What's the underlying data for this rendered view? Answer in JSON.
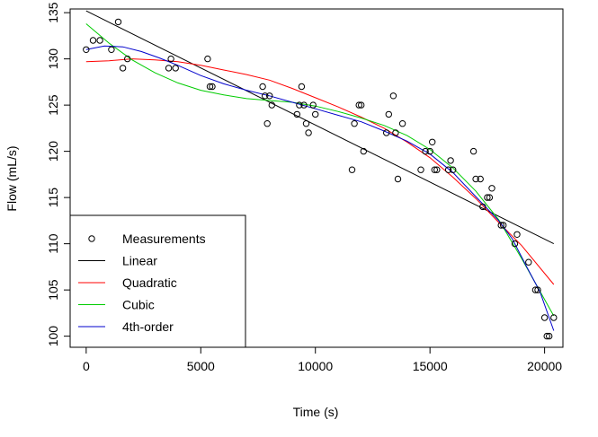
{
  "chart_data": {
    "type": "scatter",
    "title": "",
    "xlabel": "Time (s)",
    "ylabel": "Flow (mL/s)",
    "xlim": [
      -700,
      20800
    ],
    "ylim": [
      98.8,
      135.4
    ],
    "xticks": [
      0,
      5000,
      10000,
      15000,
      20000
    ],
    "yticks": [
      100,
      105,
      110,
      115,
      120,
      125,
      130,
      135
    ],
    "legend_position": "bottom-left",
    "grid": false,
    "points": [
      [
        0,
        131
      ],
      [
        300,
        132
      ],
      [
        600,
        132
      ],
      [
        1100,
        131
      ],
      [
        1400,
        134
      ],
      [
        1600,
        129
      ],
      [
        1800,
        130
      ],
      [
        3600,
        129
      ],
      [
        3700,
        130
      ],
      [
        3900,
        129
      ],
      [
        5300,
        130
      ],
      [
        5400,
        127
      ],
      [
        5500,
        127
      ],
      [
        7700,
        127
      ],
      [
        7800,
        126
      ],
      [
        7900,
        123
      ],
      [
        8000,
        126
      ],
      [
        8100,
        125
      ],
      [
        9200,
        124
      ],
      [
        9300,
        125
      ],
      [
        9400,
        127
      ],
      [
        9500,
        125
      ],
      [
        9600,
        123
      ],
      [
        9700,
        122
      ],
      [
        9900,
        125
      ],
      [
        10000,
        124
      ],
      [
        11600,
        118
      ],
      [
        11700,
        123
      ],
      [
        11900,
        125
      ],
      [
        12000,
        125
      ],
      [
        12100,
        120
      ],
      [
        13100,
        122
      ],
      [
        13200,
        124
      ],
      [
        13400,
        126
      ],
      [
        13500,
        122
      ],
      [
        13600,
        117
      ],
      [
        13800,
        123
      ],
      [
        14600,
        118
      ],
      [
        14800,
        120
      ],
      [
        15000,
        120
      ],
      [
        15100,
        121
      ],
      [
        15200,
        118
      ],
      [
        15300,
        118
      ],
      [
        15800,
        118
      ],
      [
        15900,
        119
      ],
      [
        16000,
        118
      ],
      [
        16900,
        120
      ],
      [
        17000,
        117
      ],
      [
        17200,
        117
      ],
      [
        17300,
        114
      ],
      [
        17500,
        115
      ],
      [
        17600,
        115
      ],
      [
        17700,
        116
      ],
      [
        18100,
        112
      ],
      [
        18200,
        112
      ],
      [
        18700,
        110
      ],
      [
        18800,
        111
      ],
      [
        19300,
        108
      ],
      [
        19600,
        105
      ],
      [
        19700,
        105
      ],
      [
        20000,
        102
      ],
      [
        20100,
        100
      ],
      [
        20200,
        100
      ],
      [
        20400,
        102
      ]
    ],
    "series": [
      {
        "name": "Measurements",
        "kind": "points",
        "color": "#000000"
      },
      {
        "name": "Linear",
        "kind": "line",
        "color": "#000000",
        "x": [
          0,
          20400
        ],
        "y": [
          135.2,
          110.0
        ]
      },
      {
        "name": "Quadratic",
        "kind": "line",
        "color": "#ff0000",
        "x": [
          0,
          1000,
          2000,
          3000,
          4000,
          5000,
          6000,
          7000,
          8000,
          9000,
          10000,
          11000,
          12000,
          13000,
          14000,
          15000,
          16000,
          17000,
          18000,
          19000,
          20400
        ],
        "y": [
          129.7,
          129.8,
          130.0,
          129.9,
          129.7,
          129.3,
          128.8,
          128.3,
          127.7,
          126.8,
          125.8,
          124.8,
          123.7,
          122.5,
          121.0,
          119.3,
          117.2,
          114.9,
          112.3,
          109.8,
          105.6
        ]
      },
      {
        "name": "Cubic",
        "kind": "line",
        "color": "#00cc00",
        "x": [
          0,
          1000,
          2000,
          3000,
          4000,
          5000,
          6000,
          7000,
          8000,
          9000,
          10000,
          11000,
          12000,
          13000,
          14000,
          15000,
          16000,
          17000,
          18000,
          19000,
          20400
        ],
        "y": [
          133.8,
          131.7,
          129.9,
          128.5,
          127.4,
          126.6,
          126.1,
          125.7,
          125.5,
          125.3,
          124.9,
          124.3,
          123.6,
          122.8,
          121.7,
          120.2,
          118.2,
          115.7,
          112.6,
          108.4,
          102.2
        ]
      },
      {
        "name": "4th-order",
        "kind": "line",
        "color": "#0000cc",
        "x": [
          0,
          800,
          1600,
          2400,
          3200,
          4000,
          5000,
          6000,
          7000,
          8000,
          9000,
          10000,
          11000,
          12000,
          13000,
          14000,
          15000,
          16000,
          17000,
          18000,
          18600,
          19200,
          19800,
          20400
        ],
        "y": [
          131.0,
          131.4,
          131.3,
          130.8,
          130.1,
          129.3,
          128.2,
          127.3,
          126.6,
          126.0,
          125.3,
          124.6,
          123.9,
          123.2,
          122.2,
          121.1,
          119.7,
          117.7,
          115.1,
          112.5,
          110.5,
          107.6,
          104.8,
          100.6
        ]
      }
    ]
  }
}
